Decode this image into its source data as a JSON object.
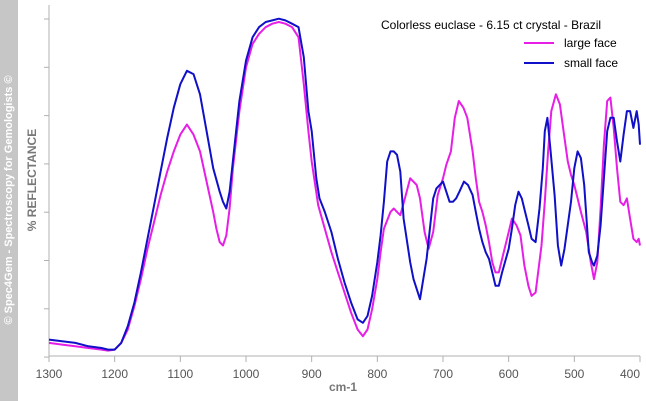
{
  "sidebar": {
    "copyright": "© Spec4Gem - Spectroscopy for Gemologists ©"
  },
  "chart_data": {
    "type": "line",
    "title": "Colorless euclase - 6.15 ct crystal - Brazil",
    "xlabel": "cm-1",
    "ylabel": "% REFLECTANCE",
    "xlim": [
      1300,
      400
    ],
    "ylim": [
      0,
      100
    ],
    "x_reversed": true,
    "x_ticks": [
      "1300",
      "1200",
      "1100",
      "1000",
      "900",
      "800",
      "700",
      "600",
      "500",
      "400"
    ],
    "y_ticks_labeled": false,
    "grid": false,
    "legend_position": "top-right",
    "series": [
      {
        "name": "large face",
        "color": "#e61ee6",
        "points": [
          [
            1300,
            3
          ],
          [
            1280,
            2.5
          ],
          [
            1260,
            2
          ],
          [
            1240,
            1.5
          ],
          [
            1220,
            1
          ],
          [
            1210,
            0.7
          ],
          [
            1200,
            1
          ],
          [
            1190,
            3
          ],
          [
            1180,
            7
          ],
          [
            1170,
            14
          ],
          [
            1160,
            22
          ],
          [
            1150,
            31
          ],
          [
            1140,
            39
          ],
          [
            1130,
            47
          ],
          [
            1120,
            54
          ],
          [
            1110,
            60
          ],
          [
            1100,
            65
          ],
          [
            1090,
            68
          ],
          [
            1080,
            65
          ],
          [
            1070,
            60
          ],
          [
            1060,
            51
          ],
          [
            1050,
            42
          ],
          [
            1045,
            37
          ],
          [
            1040,
            33
          ],
          [
            1035,
            32
          ],
          [
            1030,
            35
          ],
          [
            1025,
            43
          ],
          [
            1020,
            55
          ],
          [
            1010,
            72
          ],
          [
            1000,
            85
          ],
          [
            990,
            92
          ],
          [
            980,
            95
          ],
          [
            970,
            97
          ],
          [
            960,
            98
          ],
          [
            950,
            98.5
          ],
          [
            940,
            98
          ],
          [
            930,
            97
          ],
          [
            920,
            94
          ],
          [
            912,
            80
          ],
          [
            905,
            66
          ],
          [
            900,
            57
          ],
          [
            890,
            44
          ],
          [
            880,
            37
          ],
          [
            870,
            30
          ],
          [
            860,
            24
          ],
          [
            850,
            18
          ],
          [
            840,
            12
          ],
          [
            830,
            7
          ],
          [
            822,
            5
          ],
          [
            815,
            7
          ],
          [
            808,
            13
          ],
          [
            800,
            22
          ],
          [
            795,
            30
          ],
          [
            790,
            37
          ],
          [
            780,
            42
          ],
          [
            775,
            43
          ],
          [
            770,
            42
          ],
          [
            765,
            41
          ],
          [
            758,
            46
          ],
          [
            750,
            52
          ],
          [
            740,
            50
          ],
          [
            735,
            46
          ],
          [
            728,
            36
          ],
          [
            722,
            31
          ],
          [
            715,
            36
          ],
          [
            708,
            47
          ],
          [
            700,
            52
          ],
          [
            695,
            56
          ],
          [
            688,
            60
          ],
          [
            682,
            70
          ],
          [
            676,
            75
          ],
          [
            669,
            73
          ],
          [
            663,
            70
          ],
          [
            655,
            60
          ],
          [
            650,
            52
          ],
          [
            645,
            45
          ],
          [
            640,
            42
          ],
          [
            635,
            38
          ],
          [
            630,
            33
          ],
          [
            625,
            27
          ],
          [
            620,
            24
          ],
          [
            615,
            24
          ],
          [
            610,
            28
          ],
          [
            600,
            36
          ],
          [
            595,
            40
          ],
          [
            588,
            38
          ],
          [
            582,
            35
          ],
          [
            576,
            26
          ],
          [
            570,
            20
          ],
          [
            565,
            17
          ],
          [
            559,
            18
          ],
          [
            550,
            32
          ],
          [
            545,
            45
          ],
          [
            540,
            60
          ],
          [
            535,
            72
          ],
          [
            528,
            77
          ],
          [
            522,
            74
          ],
          [
            515,
            64
          ],
          [
            510,
            57
          ],
          [
            505,
            53
          ],
          [
            500,
            50
          ],
          [
            495,
            46
          ],
          [
            490,
            42
          ],
          [
            482,
            36
          ],
          [
            475,
            27
          ],
          [
            470,
            22
          ],
          [
            465,
            27
          ],
          [
            460,
            43
          ],
          [
            455,
            62
          ],
          [
            450,
            75
          ],
          [
            445,
            76
          ],
          [
            440,
            67
          ],
          [
            435,
            55
          ],
          [
            430,
            45
          ],
          [
            425,
            44
          ],
          [
            420,
            46
          ],
          [
            415,
            40
          ],
          [
            410,
            34
          ],
          [
            405,
            33
          ],
          [
            402,
            34
          ],
          [
            400,
            32
          ]
        ]
      },
      {
        "name": "small face",
        "color": "#1010c8",
        "points": [
          [
            1300,
            4
          ],
          [
            1280,
            3.5
          ],
          [
            1260,
            3
          ],
          [
            1240,
            2
          ],
          [
            1220,
            1.5
          ],
          [
            1210,
            1
          ],
          [
            1200,
            1
          ],
          [
            1190,
            3
          ],
          [
            1180,
            8
          ],
          [
            1170,
            15
          ],
          [
            1160,
            24
          ],
          [
            1150,
            34
          ],
          [
            1140,
            44
          ],
          [
            1130,
            54
          ],
          [
            1120,
            64
          ],
          [
            1110,
            73
          ],
          [
            1100,
            80
          ],
          [
            1090,
            84
          ],
          [
            1080,
            83
          ],
          [
            1070,
            77
          ],
          [
            1060,
            66
          ],
          [
            1050,
            55
          ],
          [
            1040,
            48
          ],
          [
            1035,
            45
          ],
          [
            1030,
            43
          ],
          [
            1025,
            48
          ],
          [
            1015,
            66
          ],
          [
            1010,
            75
          ],
          [
            1000,
            87
          ],
          [
            990,
            94
          ],
          [
            980,
            97
          ],
          [
            970,
            98.5
          ],
          [
            960,
            99
          ],
          [
            950,
            99.5
          ],
          [
            940,
            99
          ],
          [
            930,
            98
          ],
          [
            920,
            97
          ],
          [
            912,
            88
          ],
          [
            905,
            72
          ],
          [
            900,
            66
          ],
          [
            893,
            52
          ],
          [
            888,
            46
          ],
          [
            880,
            42
          ],
          [
            870,
            36
          ],
          [
            860,
            28
          ],
          [
            850,
            21
          ],
          [
            840,
            15
          ],
          [
            830,
            10
          ],
          [
            822,
            9
          ],
          [
            815,
            11
          ],
          [
            808,
            17
          ],
          [
            800,
            27
          ],
          [
            795,
            35
          ],
          [
            790,
            45
          ],
          [
            785,
            57
          ],
          [
            780,
            60
          ],
          [
            775,
            60
          ],
          [
            770,
            59
          ],
          [
            765,
            54
          ],
          [
            760,
            40
          ],
          [
            750,
            27
          ],
          [
            745,
            22
          ],
          [
            735,
            16
          ],
          [
            725,
            28
          ],
          [
            715,
            46
          ],
          [
            710,
            49
          ],
          [
            700,
            51
          ],
          [
            695,
            48
          ],
          [
            690,
            45
          ],
          [
            685,
            45
          ],
          [
            680,
            46
          ],
          [
            675,
            48
          ],
          [
            668,
            51
          ],
          [
            662,
            50
          ],
          [
            655,
            47
          ],
          [
            650,
            42
          ],
          [
            645,
            37
          ],
          [
            640,
            33
          ],
          [
            635,
            30
          ],
          [
            630,
            28
          ],
          [
            625,
            24
          ],
          [
            620,
            20
          ],
          [
            615,
            20
          ],
          [
            610,
            24
          ],
          [
            600,
            31
          ],
          [
            595,
            37
          ],
          [
            590,
            44
          ],
          [
            585,
            48
          ],
          [
            580,
            46
          ],
          [
            575,
            42
          ],
          [
            570,
            38
          ],
          [
            565,
            34
          ],
          [
            559,
            33
          ],
          [
            553,
            43
          ],
          [
            548,
            55
          ],
          [
            545,
            66
          ],
          [
            541,
            70
          ],
          [
            537,
            62
          ],
          [
            530,
            47
          ],
          [
            525,
            32
          ],
          [
            520,
            26
          ],
          [
            515,
            31
          ],
          [
            505,
            45
          ],
          [
            500,
            55
          ],
          [
            495,
            60
          ],
          [
            490,
            58
          ],
          [
            485,
            50
          ],
          [
            478,
            30
          ],
          [
            473,
            27
          ],
          [
            470,
            26
          ],
          [
            465,
            29
          ],
          [
            460,
            38
          ],
          [
            455,
            52
          ],
          [
            450,
            66
          ],
          [
            445,
            70
          ],
          [
            440,
            70
          ],
          [
            435,
            63
          ],
          [
            430,
            57
          ],
          [
            425,
            65
          ],
          [
            420,
            72
          ],
          [
            415,
            72
          ],
          [
            410,
            67
          ],
          [
            405,
            72
          ],
          [
            402,
            68
          ],
          [
            400,
            62
          ]
        ]
      }
    ]
  }
}
